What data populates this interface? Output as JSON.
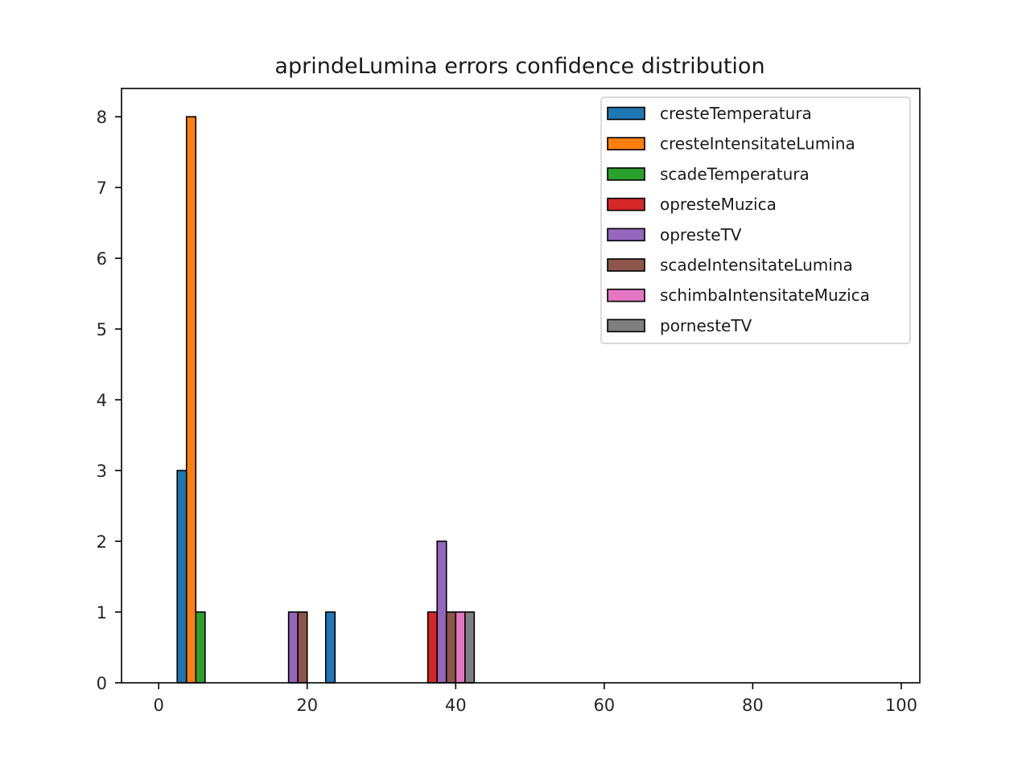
{
  "chart_data": {
    "type": "bar",
    "title": "aprindeLumina errors confidence distribution",
    "xlabel": "",
    "ylabel": "",
    "xlim": [
      -5,
      102.5
    ],
    "ylim": [
      0,
      8.4
    ],
    "xticks": [
      0,
      20,
      40,
      60,
      80,
      100
    ],
    "yticks": [
      0,
      1,
      2,
      3,
      4,
      5,
      6,
      7,
      8
    ],
    "bin_edges": [
      2.5,
      12.5,
      22.5,
      32.5,
      42.5,
      52.5,
      62.5,
      72.5,
      82.5,
      92.5,
      102.5
    ],
    "series": [
      {
        "name": "cresteTemperatura",
        "color": "#1f77b4",
        "values": [
          3,
          0,
          1,
          0,
          0,
          0,
          0,
          0,
          0,
          0
        ]
      },
      {
        "name": "cresteIntensitateLumina",
        "color": "#ff7f0e",
        "values": [
          8,
          0,
          0,
          0,
          0,
          0,
          0,
          0,
          0,
          0
        ]
      },
      {
        "name": "scadeTemperatura",
        "color": "#2ca02c",
        "values": [
          1,
          0,
          0,
          0,
          0,
          0,
          0,
          0,
          0,
          0
        ]
      },
      {
        "name": "opresteMuzica",
        "color": "#d62728",
        "values": [
          0,
          0,
          0,
          1,
          0,
          0,
          0,
          0,
          0,
          0
        ]
      },
      {
        "name": "opresteTV",
        "color": "#9467bd",
        "values": [
          0,
          1,
          0,
          2,
          0,
          0,
          0,
          0,
          0,
          0
        ]
      },
      {
        "name": "scadeIntensitateLumina",
        "color": "#8c564b",
        "values": [
          0,
          1,
          0,
          1,
          0,
          0,
          0,
          0,
          0,
          0
        ]
      },
      {
        "name": "schimbaIntensitateMuzica",
        "color": "#e377c2",
        "values": [
          0,
          0,
          0,
          1,
          0,
          0,
          0,
          0,
          0,
          0
        ]
      },
      {
        "name": "pornesteTV",
        "color": "#7f7f7f",
        "values": [
          0,
          0,
          0,
          1,
          0,
          0,
          0,
          0,
          0,
          0
        ]
      }
    ],
    "grid": false,
    "legend_position": "top-right"
  }
}
